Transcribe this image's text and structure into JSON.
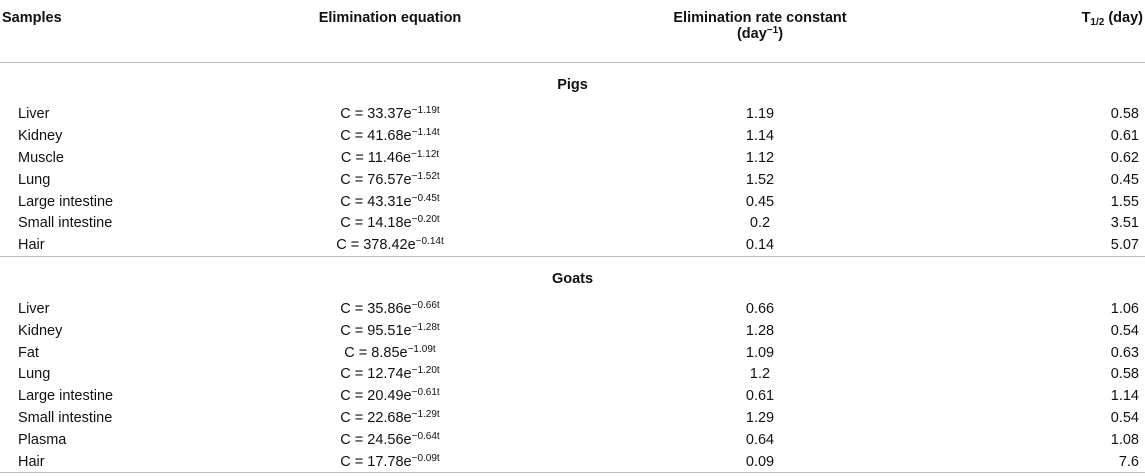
{
  "header": {
    "samples": "Samples",
    "equation": "Elimination equation",
    "rate_line1": "Elimination rate constant",
    "rate_line2_prefix": "(day",
    "rate_line2_sup": "−1",
    "rate_line2_suffix": ")",
    "half_life_main": "T",
    "half_life_sub": "1/2",
    "half_life_suffix": " (day)"
  },
  "groups": [
    {
      "name": "Pigs",
      "rows": [
        {
          "sample": "Liver",
          "eq_base": "C = 33.37e",
          "eq_exp": "−1.19t",
          "k": "1.19",
          "t_half": "0.58"
        },
        {
          "sample": "Kidney",
          "eq_base": "C = 41.68e",
          "eq_exp": "−1.14t",
          "k": "1.14",
          "t_half": "0.61"
        },
        {
          "sample": "Muscle",
          "eq_base": "C = 11.46e",
          "eq_exp": "−1.12t",
          "k": "1.12",
          "t_half": "0.62"
        },
        {
          "sample": "Lung",
          "eq_base": "C = 76.57e",
          "eq_exp": "−1.52t",
          "k": "1.52",
          "t_half": "0.45"
        },
        {
          "sample": "Large intestine",
          "eq_base": "C = 43.31e",
          "eq_exp": "−0.45t",
          "k": "0.45",
          "t_half": "1.55"
        },
        {
          "sample": "Small intestine",
          "eq_base": "C = 14.18e",
          "eq_exp": "−0.20t",
          "k": "0.2",
          "t_half": "3.51"
        },
        {
          "sample": "Hair",
          "eq_base": "C = 378.42e",
          "eq_exp": "−0.14t",
          "k": "0.14",
          "t_half": "5.07"
        }
      ]
    },
    {
      "name": "Goats",
      "rows": [
        {
          "sample": "Liver",
          "eq_base": "C = 35.86e",
          "eq_exp": "−0.66t",
          "k": "0.66",
          "t_half": "1.06"
        },
        {
          "sample": "Kidney",
          "eq_base": "C = 95.51e",
          "eq_exp": "−1.28t",
          "k": "1.28",
          "t_half": "0.54"
        },
        {
          "sample": "Fat",
          "eq_base": "C = 8.85e",
          "eq_exp": "−1.09t",
          "k": "1.09",
          "t_half": "0.63"
        },
        {
          "sample": "Lung",
          "eq_base": "C = 12.74e",
          "eq_exp": "−1.20t",
          "k": "1.2",
          "t_half": "0.58"
        },
        {
          "sample": "Large intestine",
          "eq_base": "C = 20.49e",
          "eq_exp": "−0.61t",
          "k": "0.61",
          "t_half": "1.14"
        },
        {
          "sample": "Small intestine",
          "eq_base": "C = 22.68e",
          "eq_exp": "−1.29t",
          "k": "1.29",
          "t_half": "0.54"
        },
        {
          "sample": "Plasma",
          "eq_base": "C = 24.56e",
          "eq_exp": "−0.64t",
          "k": "0.64",
          "t_half": "1.08"
        },
        {
          "sample": "Hair",
          "eq_base": "C = 17.78e",
          "eq_exp": "−0.09t",
          "k": "0.09",
          "t_half": "7.6"
        }
      ]
    }
  ]
}
